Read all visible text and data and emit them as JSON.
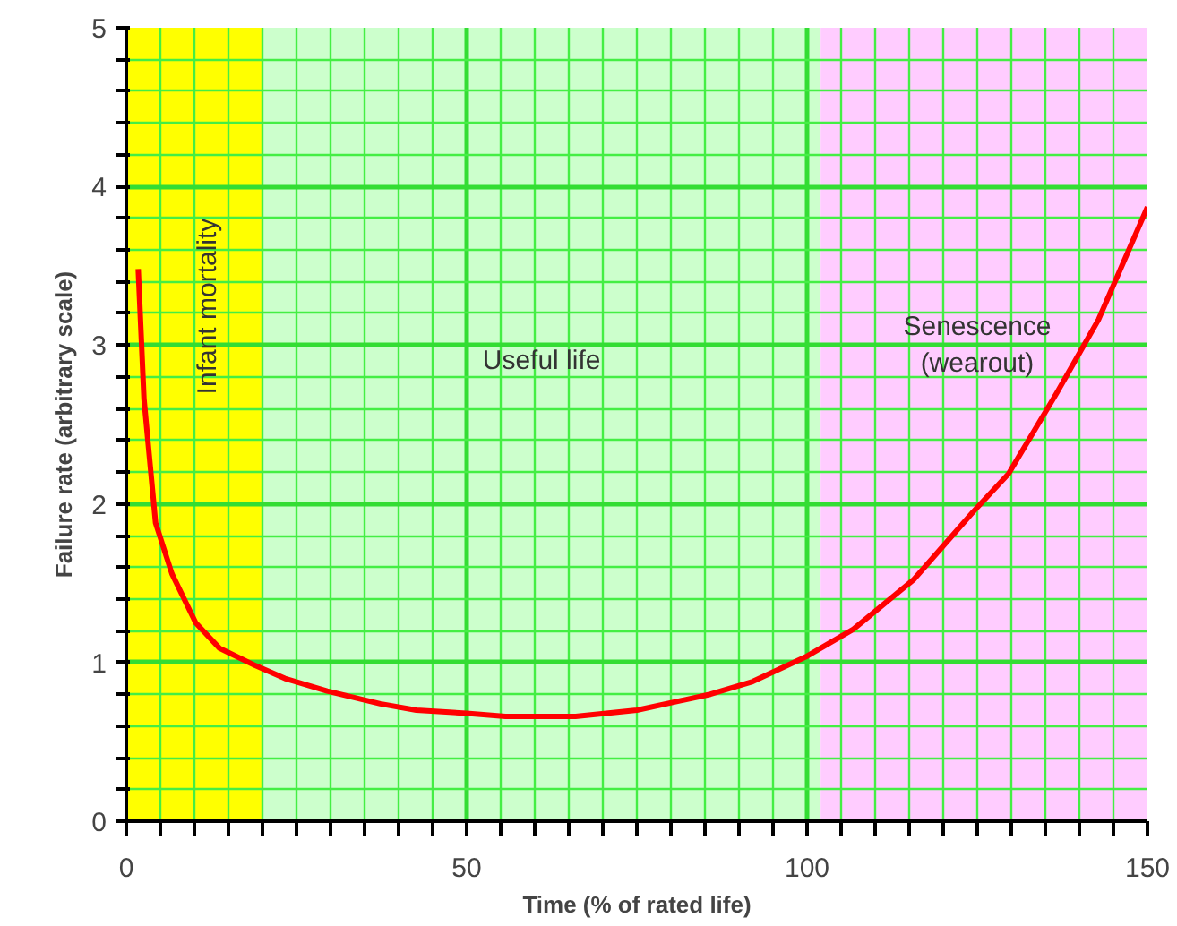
{
  "chart_data": {
    "type": "line",
    "xlabel": "Time (% of rated life)",
    "ylabel": "Failure rate (arbitrary scale)",
    "x": [
      1.75,
      2.6,
      4.3,
      6.7,
      10.2,
      13.7,
      19,
      23.3,
      29.5,
      37.3,
      42.6,
      50,
      55.7,
      66,
      75,
      85.8,
      92,
      100,
      106.8,
      115.6,
      124.4,
      129.6,
      136.7,
      142.8,
      150
    ],
    "series": [
      {
        "color": "#ff0000",
        "values": [
          3.48,
          2.66,
          1.88,
          1.56,
          1.25,
          1.09,
          0.98,
          0.9,
          0.82,
          0.74,
          0.7,
          0.68,
          0.66,
          0.66,
          0.7,
          0.8,
          0.88,
          1.04,
          1.21,
          1.52,
          1.95,
          2.19,
          2.7,
          3.16,
          3.87
        ]
      }
    ],
    "xlim": [
      0,
      150
    ],
    "xticks": [
      0,
      {
        "value": 5,
        "label": null
      },
      {
        "value": 10,
        "label": null
      },
      {
        "value": 15,
        "label": null
      },
      {
        "value": 20,
        "label": null
      },
      {
        "value": 25,
        "label": null
      },
      {
        "value": 30,
        "label": null
      },
      {
        "value": 35,
        "label": null
      },
      {
        "value": 40,
        "label": null
      },
      {
        "value": 45,
        "label": null
      },
      50,
      {
        "value": 55,
        "label": null
      },
      {
        "value": 60,
        "label": null
      },
      {
        "value": 65,
        "label": null
      },
      {
        "value": 70,
        "label": null
      },
      {
        "value": 75,
        "label": null
      },
      {
        "value": 80,
        "label": null
      },
      {
        "value": 85,
        "label": null
      },
      {
        "value": 90,
        "label": null
      },
      {
        "value": 95,
        "label": null
      },
      100,
      {
        "value": 105,
        "label": null
      },
      {
        "value": 110,
        "label": null
      },
      {
        "value": 115,
        "label": null
      },
      {
        "value": 120,
        "label": null
      },
      {
        "value": 125,
        "label": null
      },
      {
        "value": 130,
        "label": null
      },
      {
        "value": 135,
        "label": null
      },
      {
        "value": 140,
        "label": null
      },
      {
        "value": 145,
        "label": null
      },
      150
    ],
    "ylim": [
      0,
      5
    ],
    "yticks": [
      0,
      {
        "value": 0.2,
        "label": null
      },
      {
        "value": 0.4,
        "label": null
      },
      {
        "value": 0.6,
        "label": null
      },
      {
        "value": 0.8,
        "label": null
      },
      1,
      {
        "value": 1.2,
        "label": null
      },
      {
        "value": 1.4,
        "label": null
      },
      {
        "value": 1.6,
        "label": null
      },
      {
        "value": 1.8,
        "label": null
      },
      2,
      {
        "value": 2.2,
        "label": null
      },
      {
        "value": 2.4,
        "label": null
      },
      {
        "value": 2.6,
        "label": null
      },
      {
        "value": 2.8,
        "label": null
      },
      3,
      {
        "value": 3.2,
        "label": null
      },
      {
        "value": 3.4,
        "label": null
      },
      {
        "value": 3.6,
        "label": null
      },
      {
        "value": 3.8,
        "label": null
      },
      4,
      {
        "value": 4.2,
        "label": null
      },
      {
        "value": 4.4,
        "label": null
      },
      {
        "value": 4.6,
        "label": null
      },
      {
        "value": 4.8,
        "label": null
      },
      5
    ],
    "grid": true,
    "line_style": "solid",
    "marker": "none",
    "bands": [
      {
        "axis": "x",
        "from": 0,
        "to": 20,
        "label": "Infant mortality",
        "color": "#ffff00"
      },
      {
        "axis": "x",
        "from": 20,
        "to": 102,
        "label": "Useful life",
        "color": "#ccffcc"
      },
      {
        "axis": "x",
        "from": 102,
        "to": 150,
        "label": "Senescence\n(wearout)",
        "color": "#ffccff"
      }
    ]
  }
}
